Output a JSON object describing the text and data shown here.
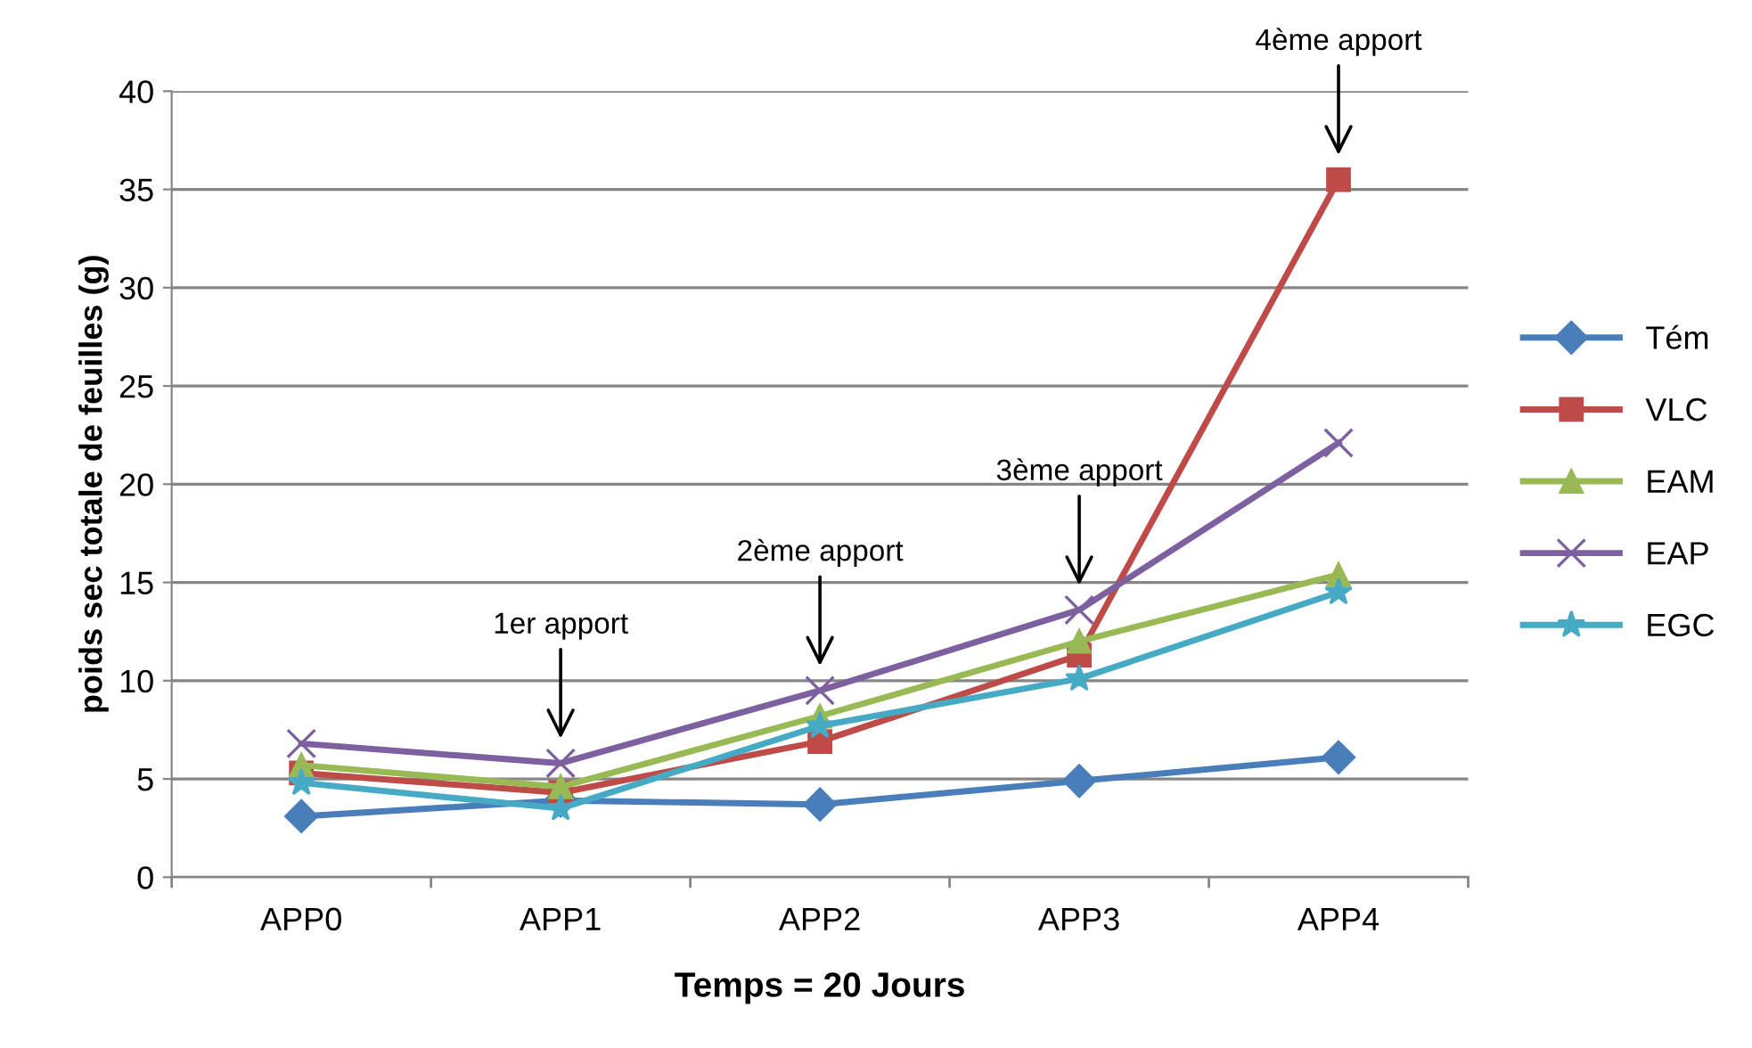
{
  "chart_data": {
    "type": "line",
    "xlabel": "Temps = 20 Jours",
    "ylabel": "poids sec totale de feuilles (g)",
    "categories": [
      "APP0",
      "APP1",
      "APP2",
      "APP3",
      "APP4"
    ],
    "series": [
      {
        "name": "Tém",
        "color": "#4a7ebb",
        "marker": "diamond",
        "values": [
          3.1,
          3.9,
          3.7,
          4.9,
          6.1
        ]
      },
      {
        "name": "VLC",
        "color": "#be4b48",
        "marker": "square",
        "values": [
          5.3,
          4.3,
          6.9,
          11.3,
          35.5
        ]
      },
      {
        "name": "EAM",
        "color": "#98b954",
        "marker": "triangle",
        "values": [
          5.7,
          4.6,
          8.2,
          12.0,
          15.4
        ]
      },
      {
        "name": "EAP",
        "color": "#7d60a0",
        "marker": "cross",
        "values": [
          6.8,
          5.8,
          9.5,
          13.6,
          22.1
        ]
      },
      {
        "name": "EGC",
        "color": "#46aac5",
        "marker": "star",
        "values": [
          4.8,
          3.5,
          7.7,
          10.1,
          14.5
        ]
      }
    ],
    "annotations": [
      "1er apport",
      "2ème apport",
      "3ème apport",
      "4ème apport"
    ],
    "ylim": [
      0,
      40
    ],
    "yticks": [
      0,
      5,
      10,
      15,
      20,
      25,
      30,
      35,
      40
    ],
    "grid": "y",
    "legend": "right",
    "line_style": "solid"
  }
}
